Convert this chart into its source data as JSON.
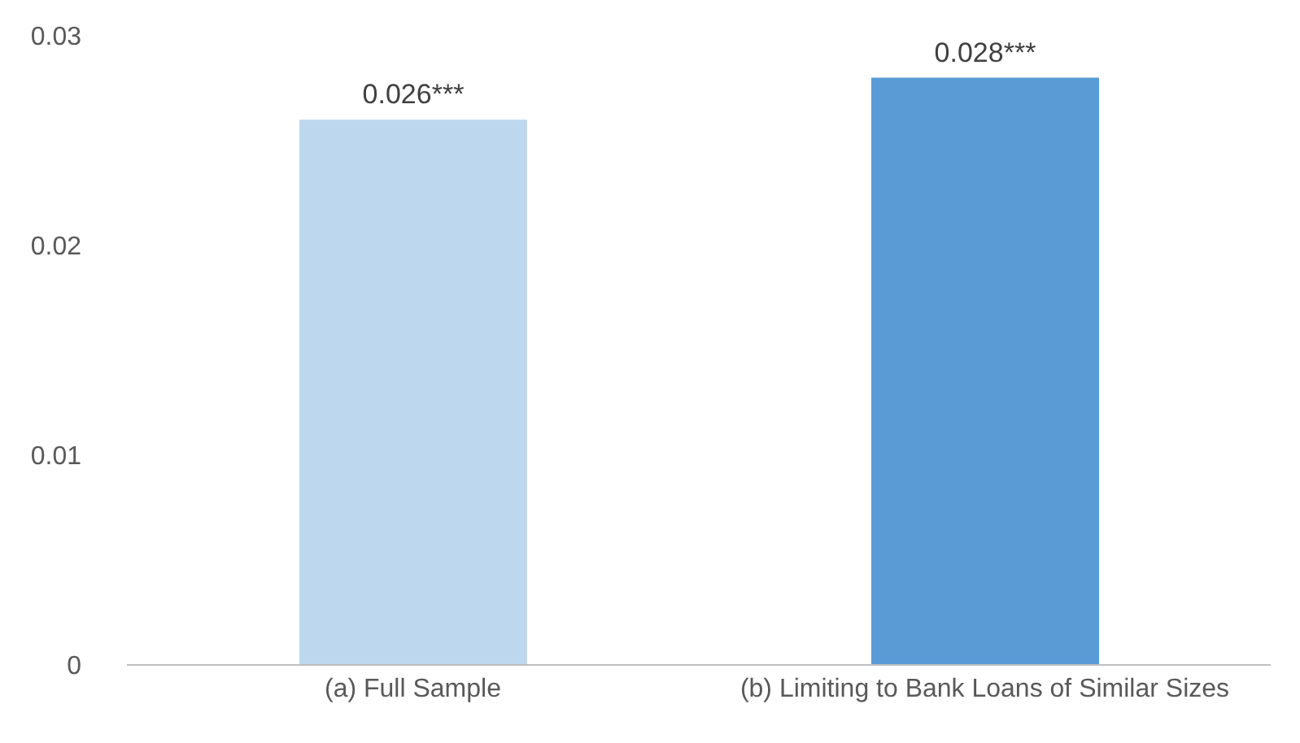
{
  "chart_data": {
    "type": "bar",
    "categories": [
      "(a) Full Sample",
      "(b) Limiting to Bank Loans of Similar Sizes"
    ],
    "values": [
      0.026,
      0.028
    ],
    "colors": [
      "#bdd7ee",
      "#5b9bd5"
    ],
    "value_labels": [
      "0.026***",
      "0.028***"
    ],
    "ylim": [
      0,
      0.03
    ],
    "yticks": [
      0,
      0.01,
      0.02,
      0.03
    ],
    "grid": false
  }
}
